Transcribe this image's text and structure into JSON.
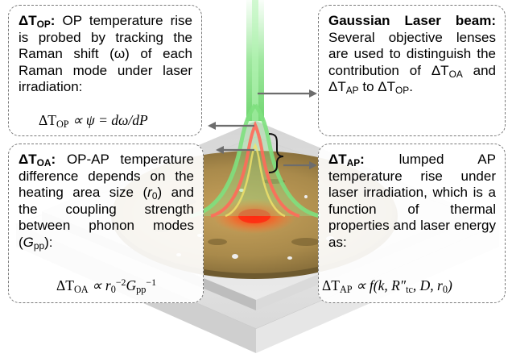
{
  "boxes": {
    "op": {
      "symbol": "ΔT",
      "sub": "OP",
      "colon": ":",
      "text": "OP temperature rise is probed by tracking the Raman shift (ω) of each Raman mode under laser irradiation:",
      "equation": {
        "lhs": "ΔT",
        "lhs_sub": "OP",
        "rhs": "∝ ψ = dω/dP"
      }
    },
    "laser": {
      "title": "Gaussian Laser beam:",
      "text_a": "Several objective lenses are used to distinguish the contribution of ",
      "t1": "ΔT",
      "t1_sub": "OA",
      "mid": " and ",
      "t2": "ΔT",
      "t2_sub": "AP",
      "to": " to ",
      "t3": "ΔT",
      "t3_sub": "OP",
      "end": "."
    },
    "oa": {
      "symbol": "ΔT",
      "sub": "OA",
      "colon": ":",
      "text_a": "OP-AP temperature difference depends on the heating area size (",
      "r0": "r",
      "r0_sub": "0",
      "text_b": ") and the coupling strength between phonon modes (",
      "g": "G",
      "g_sub": "pp",
      "text_c": "):",
      "equation": {
        "lhs": "ΔT",
        "lhs_sub": "OA",
        "rel": "∝ r",
        "r_sub": "0",
        "r_sup": "−2",
        "g": "G",
        "g_sub": "pp",
        "g_sup": "−1"
      }
    },
    "ap": {
      "symbol": "ΔT",
      "sub": "AP",
      "colon": ":",
      "text": "lumped AP temperature rise under laser irradiation, which is a function of thermal properties and laser energy as:",
      "equation": {
        "lhs": "ΔT",
        "lhs_sub": "AP",
        "rel": "∝ f(k, R″",
        "r_sub": "tc",
        "tail": ", D, r",
        "tail_sub": "0",
        "close": ")"
      }
    }
  },
  "colors": {
    "beam_green": "#6fdc6f",
    "beam_red": "#ff4a3a",
    "sample_gold": "#a8894a",
    "arrow_gray": "#6d6d6d"
  }
}
